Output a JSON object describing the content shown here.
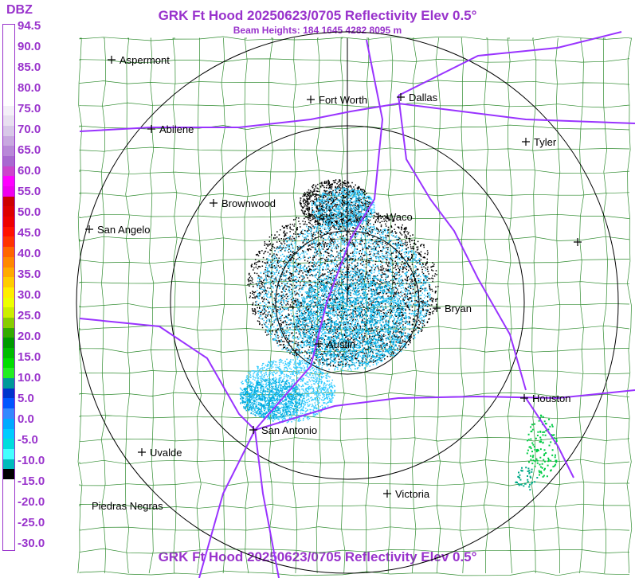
{
  "header": {
    "title": "GRK Ft Hood 20250623/0705 Reflectivity Elev 0.5°",
    "subtitle": "Beam Heights: 184 1645 4282 8095 m",
    "title_bottom": "GRK Ft Hood 20250623/0705 Reflectivity Elev 0.5°"
  },
  "legend": {
    "unit": "DBZ",
    "ticks": [
      "94.5",
      "90.0",
      "85.0",
      "80.0",
      "75.0",
      "70.0",
      "65.0",
      "60.0",
      "55.0",
      "50.0",
      "45.0",
      "40.0",
      "35.0",
      "30.0",
      "25.0",
      "20.0",
      "15.0",
      "10.0",
      "5.0",
      "0.0",
      "-5.0",
      "-10.0",
      "-15.0",
      "-20.0",
      "-25.0",
      "-30.0"
    ],
    "colors": [
      "#ffffff",
      "#ffffff",
      "#ffffff",
      "#ffffff",
      "#ffffff",
      "#ffffff",
      "#ffffff",
      "#ffffff",
      "#f4f0f8",
      "#e8e0f0",
      "#d8c8e8",
      "#c8a8e0",
      "#b888d8",
      "#a868d0",
      "#cc44cc",
      "#ff00ff",
      "#ee00ee",
      "#cc0000",
      "#dd0000",
      "#ee0000",
      "#ff1100",
      "#ff3300",
      "#ff6600",
      "#ff8800",
      "#ffaa00",
      "#ffcc00",
      "#ffee00",
      "#eeff00",
      "#ccee00",
      "#88cc00",
      "#33aa00",
      "#009900",
      "#00bb00",
      "#00dd00",
      "#22ee22",
      "#009999",
      "#0033cc",
      "#0055ff",
      "#3388ff",
      "#00aaff",
      "#00ccff",
      "#00dddd",
      "#44ffff",
      "#00bbbb",
      "#000000",
      "#ffffff",
      "#ffffff",
      "#ffffff",
      "#ffffff",
      "#ffffff",
      "#ffffff",
      "#ffffff"
    ]
  },
  "map": {
    "cities": [
      {
        "name": "Aspermont"
      },
      {
        "name": "Fort Worth"
      },
      {
        "name": "Dallas"
      },
      {
        "name": "Abilene"
      },
      {
        "name": "Tyler"
      },
      {
        "name": "Brownwood"
      },
      {
        "name": "Waco"
      },
      {
        "name": "San Angelo"
      },
      {
        "name": "Bryan"
      },
      {
        "name": "Austin"
      },
      {
        "name": "Houston"
      },
      {
        "name": "San Antonio"
      },
      {
        "name": "Uvalde"
      },
      {
        "name": "Victoria"
      },
      {
        "name": "Piedras Negras"
      }
    ],
    "colors": {
      "county": "#2e8b2e",
      "highway": "#9933ff",
      "range_ring": "#000000",
      "echo_light": "#33ccff",
      "echo_mid": "#00aadd",
      "echo_dark": "#000000"
    }
  }
}
